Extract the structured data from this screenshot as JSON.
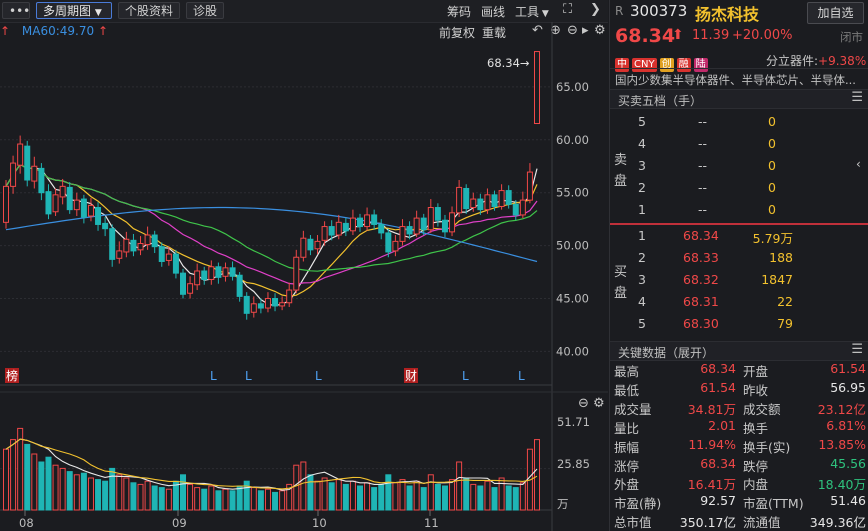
{
  "toolbar": {
    "menu_label": "•••",
    "multi_period": "多周期图",
    "stock_info": "个股资料",
    "diagnose": "诊股",
    "chips": "筹码",
    "draw_line": "画线",
    "tools": "工具"
  },
  "chart_header": {
    "ma60": "MA60:49.70",
    "adjust": "前复权",
    "overlay": "重载"
  },
  "chart_data": {
    "type": "candlestick",
    "y_ticks": [
      "65.00",
      "60.00",
      "55.00",
      "50.00",
      "45.00",
      "40.00"
    ],
    "ylim": [
      39,
      70
    ],
    "price_annotation": "68.34→",
    "x_ticks": [
      "08",
      "09",
      "10",
      "11"
    ],
    "markers": [
      "榜",
      "L",
      "L",
      "L",
      "财",
      "L",
      "L"
    ],
    "volume_ticks": [
      "51.71",
      "25.85",
      "万"
    ],
    "candles": [
      {
        "o": 52.2,
        "c": 55.6,
        "h": 56.2,
        "l": 51.6
      },
      {
        "o": 55.6,
        "c": 57.8,
        "h": 58.5,
        "l": 54.9
      },
      {
        "o": 57.6,
        "c": 59.6,
        "h": 60.4,
        "l": 56.8
      },
      {
        "o": 59.4,
        "c": 56.2,
        "h": 59.9,
        "l": 55.6
      },
      {
        "o": 56.1,
        "c": 57.5,
        "h": 58.4,
        "l": 55.4
      },
      {
        "o": 57.3,
        "c": 55.0,
        "h": 57.8,
        "l": 54.3
      },
      {
        "o": 55.1,
        "c": 53.0,
        "h": 55.8,
        "l": 52.5
      },
      {
        "o": 53.2,
        "c": 54.8,
        "h": 55.4,
        "l": 52.8
      },
      {
        "o": 54.6,
        "c": 55.6,
        "h": 56.3,
        "l": 53.9
      },
      {
        "o": 55.5,
        "c": 53.4,
        "h": 56.0,
        "l": 53.0
      },
      {
        "o": 53.4,
        "c": 54.3,
        "h": 55.0,
        "l": 52.8
      },
      {
        "o": 54.4,
        "c": 52.7,
        "h": 54.8,
        "l": 52.1
      },
      {
        "o": 52.8,
        "c": 53.8,
        "h": 54.5,
        "l": 52.3
      },
      {
        "o": 53.6,
        "c": 52.0,
        "h": 54.1,
        "l": 51.4
      },
      {
        "o": 52.1,
        "c": 51.6,
        "h": 52.7,
        "l": 50.9
      },
      {
        "o": 51.6,
        "c": 48.7,
        "h": 52.0,
        "l": 48.0
      },
      {
        "o": 48.8,
        "c": 49.5,
        "h": 50.4,
        "l": 48.3
      },
      {
        "o": 49.4,
        "c": 50.6,
        "h": 51.3,
        "l": 48.9
      },
      {
        "o": 50.5,
        "c": 49.5,
        "h": 51.1,
        "l": 49.0
      },
      {
        "o": 49.6,
        "c": 50.2,
        "h": 50.9,
        "l": 49.1
      },
      {
        "o": 50.1,
        "c": 51.0,
        "h": 51.8,
        "l": 49.6
      },
      {
        "o": 51.0,
        "c": 49.9,
        "h": 51.4,
        "l": 49.3
      },
      {
        "o": 49.9,
        "c": 48.5,
        "h": 50.3,
        "l": 48.0
      },
      {
        "o": 48.6,
        "c": 49.2,
        "h": 49.9,
        "l": 48.1
      },
      {
        "o": 49.2,
        "c": 47.4,
        "h": 49.6,
        "l": 46.9
      },
      {
        "o": 47.4,
        "c": 45.4,
        "h": 47.8,
        "l": 45.0
      },
      {
        "o": 45.5,
        "c": 46.4,
        "h": 47.1,
        "l": 45.0
      },
      {
        "o": 46.3,
        "c": 47.6,
        "h": 48.3,
        "l": 45.8
      },
      {
        "o": 47.6,
        "c": 46.8,
        "h": 48.0,
        "l": 46.3
      },
      {
        "o": 46.8,
        "c": 48.0,
        "h": 48.6,
        "l": 46.3
      },
      {
        "o": 48.0,
        "c": 47.0,
        "h": 48.4,
        "l": 46.4
      },
      {
        "o": 47.1,
        "c": 47.9,
        "h": 48.4,
        "l": 46.6
      },
      {
        "o": 47.9,
        "c": 47.1,
        "h": 48.5,
        "l": 46.7
      },
      {
        "o": 47.2,
        "c": 45.2,
        "h": 47.5,
        "l": 44.7
      },
      {
        "o": 45.2,
        "c": 43.6,
        "h": 45.6,
        "l": 43.0
      },
      {
        "o": 43.7,
        "c": 44.5,
        "h": 45.2,
        "l": 43.2
      },
      {
        "o": 44.5,
        "c": 44.1,
        "h": 45.0,
        "l": 43.6
      },
      {
        "o": 44.1,
        "c": 45.0,
        "h": 45.6,
        "l": 43.7
      },
      {
        "o": 45.0,
        "c": 44.3,
        "h": 45.5,
        "l": 43.8
      },
      {
        "o": 44.3,
        "c": 44.6,
        "h": 45.2,
        "l": 43.9
      },
      {
        "o": 44.6,
        "c": 45.8,
        "h": 46.5,
        "l": 44.2
      },
      {
        "o": 45.8,
        "c": 48.9,
        "h": 49.6,
        "l": 45.5
      },
      {
        "o": 48.9,
        "c": 50.7,
        "h": 51.4,
        "l": 48.5
      },
      {
        "o": 50.6,
        "c": 49.6,
        "h": 51.0,
        "l": 49.1
      },
      {
        "o": 49.7,
        "c": 50.4,
        "h": 51.0,
        "l": 49.2
      },
      {
        "o": 50.5,
        "c": 51.8,
        "h": 52.3,
        "l": 50.0
      },
      {
        "o": 51.8,
        "c": 51.0,
        "h": 52.4,
        "l": 50.5
      },
      {
        "o": 51.0,
        "c": 52.2,
        "h": 52.9,
        "l": 50.6
      },
      {
        "o": 52.1,
        "c": 51.4,
        "h": 52.6,
        "l": 50.9
      },
      {
        "o": 51.4,
        "c": 52.6,
        "h": 53.4,
        "l": 51.0
      },
      {
        "o": 52.6,
        "c": 51.8,
        "h": 53.0,
        "l": 51.3
      },
      {
        "o": 51.8,
        "c": 52.9,
        "h": 53.6,
        "l": 51.4
      },
      {
        "o": 52.9,
        "c": 52.0,
        "h": 53.4,
        "l": 51.5
      },
      {
        "o": 52.0,
        "c": 51.2,
        "h": 52.5,
        "l": 50.6
      },
      {
        "o": 51.2,
        "c": 49.4,
        "h": 51.6,
        "l": 48.9
      },
      {
        "o": 49.5,
        "c": 50.4,
        "h": 51.0,
        "l": 49.0
      },
      {
        "o": 50.4,
        "c": 51.8,
        "h": 52.5,
        "l": 50.0
      },
      {
        "o": 51.8,
        "c": 51.1,
        "h": 52.3,
        "l": 50.6
      },
      {
        "o": 51.1,
        "c": 52.6,
        "h": 53.3,
        "l": 50.8
      },
      {
        "o": 52.6,
        "c": 51.5,
        "h": 53.0,
        "l": 51.0
      },
      {
        "o": 51.5,
        "c": 53.6,
        "h": 54.4,
        "l": 51.2
      },
      {
        "o": 53.6,
        "c": 52.4,
        "h": 54.0,
        "l": 51.8
      },
      {
        "o": 52.4,
        "c": 51.3,
        "h": 52.9,
        "l": 50.8
      },
      {
        "o": 51.3,
        "c": 53.1,
        "h": 53.7,
        "l": 50.9
      },
      {
        "o": 53.1,
        "c": 55.5,
        "h": 56.2,
        "l": 52.7
      },
      {
        "o": 55.4,
        "c": 53.5,
        "h": 55.8,
        "l": 53.0
      },
      {
        "o": 53.6,
        "c": 54.4,
        "h": 55.0,
        "l": 53.2
      },
      {
        "o": 54.4,
        "c": 53.4,
        "h": 54.9,
        "l": 52.9
      },
      {
        "o": 53.4,
        "c": 54.8,
        "h": 55.4,
        "l": 53.0
      },
      {
        "o": 54.8,
        "c": 53.7,
        "h": 55.2,
        "l": 53.3
      },
      {
        "o": 53.7,
        "c": 55.2,
        "h": 55.8,
        "l": 53.4
      },
      {
        "o": 55.2,
        "c": 53.9,
        "h": 55.7,
        "l": 53.5
      },
      {
        "o": 53.9,
        "c": 52.9,
        "h": 54.3,
        "l": 52.4
      },
      {
        "o": 52.9,
        "c": 54.3,
        "h": 55.1,
        "l": 52.6
      },
      {
        "o": 54.3,
        "c": 56.95,
        "h": 57.8,
        "l": 54.0
      },
      {
        "o": 61.54,
        "c": 68.34,
        "h": 68.34,
        "l": 61.54
      }
    ],
    "volumes": [
      38,
      44,
      51,
      41,
      35,
      30,
      33,
      28,
      26,
      24,
      22,
      23,
      20,
      19,
      18,
      26,
      22,
      20,
      17,
      16,
      18,
      15,
      14,
      13,
      18,
      22,
      16,
      14,
      13,
      15,
      12,
      13,
      12,
      15,
      18,
      14,
      12,
      13,
      11,
      12,
      16,
      28,
      30,
      22,
      18,
      20,
      17,
      19,
      16,
      18,
      15,
      17,
      14,
      16,
      22,
      17,
      19,
      15,
      18,
      14,
      22,
      16,
      15,
      19,
      30,
      20,
      16,
      15,
      18,
      14,
      20,
      15,
      14,
      17,
      38,
      44
    ]
  },
  "quote": {
    "market_flag": "R",
    "code": "300373",
    "name": "扬杰科技",
    "watch_button": "加自选",
    "price": "68.34",
    "arrow": "⬆",
    "change": "11.39",
    "change_pct": "+20.00%",
    "status": "闭市",
    "badges": [
      "中",
      "CNY",
      "创",
      "融",
      "陆"
    ],
    "sector_label": "分立器件:",
    "sector_pct": "+9.38%",
    "tags_text": "国内少数集半导体器件、半导体芯片、半导体..."
  },
  "order_book": {
    "title": "买卖五档（手）",
    "sell_label_1": "卖",
    "sell_label_2": "盘",
    "buy_label_1": "买",
    "buy_label_2": "盘",
    "sells": [
      {
        "level": "5",
        "price": "--",
        "vol": "0"
      },
      {
        "level": "4",
        "price": "--",
        "vol": "0"
      },
      {
        "level": "3",
        "price": "--",
        "vol": "0"
      },
      {
        "level": "2",
        "price": "--",
        "vol": "0"
      },
      {
        "level": "1",
        "price": "--",
        "vol": "0"
      }
    ],
    "buys": [
      {
        "level": "1",
        "price": "68.34",
        "vol": "5.79万"
      },
      {
        "level": "2",
        "price": "68.33",
        "vol": "188"
      },
      {
        "level": "3",
        "price": "68.32",
        "vol": "1847"
      },
      {
        "level": "4",
        "price": "68.31",
        "vol": "22"
      },
      {
        "level": "5",
        "price": "68.30",
        "vol": "79"
      }
    ]
  },
  "key_data": {
    "title": "关键数据（展开）",
    "rows": [
      {
        "l1": "最高",
        "v1": "68.34",
        "c1": "red",
        "l2": "开盘",
        "v2": "61.54",
        "c2": "red"
      },
      {
        "l1": "最低",
        "v1": "61.54",
        "c1": "red",
        "l2": "昨收",
        "v2": "56.95",
        "c2": "white"
      },
      {
        "l1": "成交量",
        "v1": "34.81万",
        "c1": "red",
        "l2": "成交额",
        "v2": "23.12亿",
        "c2": "red"
      },
      {
        "l1": "量比",
        "v1": "2.01",
        "c1": "red",
        "l2": "换手",
        "v2": "6.81%",
        "c2": "red"
      },
      {
        "l1": "振幅",
        "v1": "11.94%",
        "c1": "red",
        "l2": "换手(实)",
        "v2": "13.85%",
        "c2": "red"
      },
      {
        "l1": "涨停",
        "v1": "68.34",
        "c1": "red",
        "l2": "跌停",
        "v2": "45.56",
        "c2": "green"
      },
      {
        "l1": "外盘",
        "v1": "16.41万",
        "c1": "red",
        "l2": "内盘",
        "v2": "18.40万",
        "c2": "green"
      },
      {
        "l1": "市盈(静)",
        "v1": "92.57",
        "c1": "white",
        "l2": "市盈(TTM)",
        "v2": "51.46",
        "c2": "white"
      },
      {
        "l1": "总市值",
        "v1": "350.17亿",
        "c1": "white",
        "l2": "流通值",
        "v2": "349.36亿",
        "c2": "white"
      }
    ]
  },
  "colors": {
    "up": "#f04848",
    "down": "#1fb5b5",
    "ma5": "#e8e8e8",
    "ma10": "#f2c12e",
    "ma20": "#e040c8",
    "ma30": "#3fc44a",
    "ma60": "#3a8fe0"
  }
}
